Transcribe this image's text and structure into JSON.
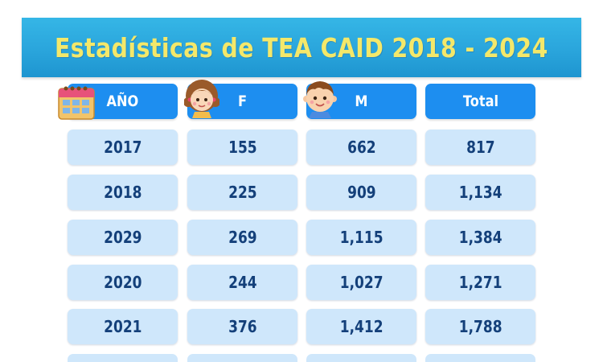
{
  "title": "Estadísticas de TEA CAID 2018 - 2024",
  "colors": {
    "banner": "#2aa5dc",
    "title_text": "#f4e86a",
    "header_cell": "#1d8ef0",
    "body_cell": "#cfe7fb",
    "body_text": "#14407a"
  },
  "table": {
    "headers": {
      "year": "AÑO",
      "female": "F",
      "male": "M",
      "total": "Total"
    },
    "header_icons": {
      "year": "calendar-icon",
      "female": "girl-face-icon",
      "male": "boy-face-icon"
    },
    "rows": [
      {
        "year": "2017",
        "f": "155",
        "m": "662",
        "total": "817"
      },
      {
        "year": "2018",
        "f": "225",
        "m": "909",
        "total": "1,134"
      },
      {
        "year": "2029",
        "f": "269",
        "m": "1,115",
        "total": "1,384"
      },
      {
        "year": "2020",
        "f": "244",
        "m": "1,027",
        "total": "1,271"
      },
      {
        "year": "2021",
        "f": "376",
        "m": "1,412",
        "total": "1,788"
      }
    ]
  }
}
